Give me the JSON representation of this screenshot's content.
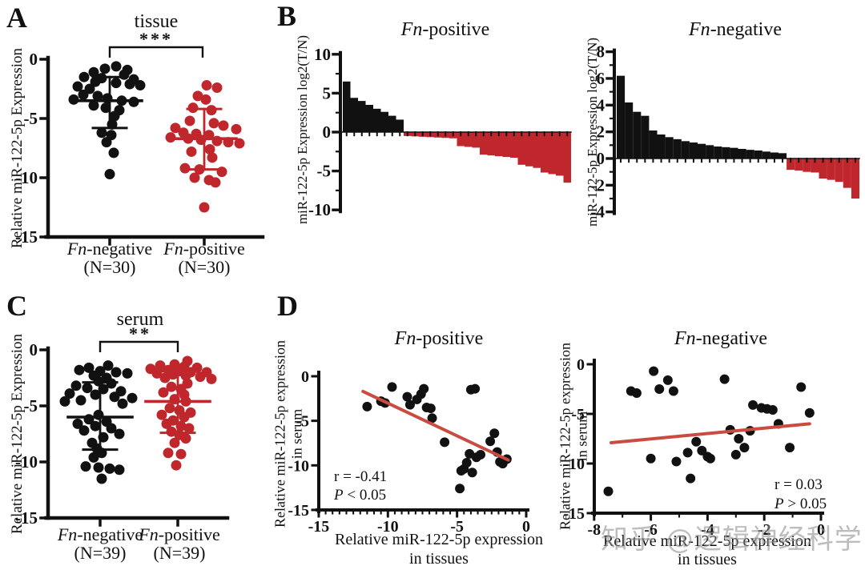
{
  "watermark": {
    "text": "知乎 @逻辑神经科学"
  },
  "colors": {
    "black": "#111111",
    "red": "#C0272D",
    "trendline": "#CC4B40"
  },
  "chart_data": [
    {
      "panel": "A",
      "type": "scatter",
      "title": "tissue",
      "significance": "***",
      "ylabel": "Relative miR-122-5p Expression",
      "ylim": [
        -15,
        0
      ],
      "yticks": [
        0,
        -5,
        -10,
        -15
      ],
      "groups": [
        {
          "name_italic": "Fn",
          "name_rest": "-negative",
          "n": "(N=30)",
          "color": "#111111",
          "mean": -3.5,
          "sd_high": -1.5,
          "sd_low": -5.8,
          "points": [
            [
              -0.6,
              8
            ],
            [
              -0.8,
              -6
            ],
            [
              -0.9,
              22
            ],
            [
              -1.1,
              -20
            ],
            [
              -1.3,
              18
            ],
            [
              -1.5,
              -32
            ],
            [
              -1.6,
              -10
            ],
            [
              -1.7,
              30
            ],
            [
              -1.9,
              -18
            ],
            [
              -2.0,
              8
            ],
            [
              -2.1,
              25
            ],
            [
              -2.2,
              38
            ],
            [
              -2.3,
              -40
            ],
            [
              -2.5,
              -25
            ],
            [
              -3.0,
              -33
            ],
            [
              -3.1,
              -15
            ],
            [
              -3.3,
              -3
            ],
            [
              -3.4,
              -45
            ],
            [
              -3.5,
              15
            ],
            [
              -3.6,
              30
            ],
            [
              -3.9,
              -20
            ],
            [
              -4.1,
              -5
            ],
            [
              -4.3,
              12
            ],
            [
              -4.8,
              6
            ],
            [
              -5.5,
              3
            ],
            [
              -6.2,
              -10
            ],
            [
              -6.4,
              2
            ],
            [
              -7.0,
              -4
            ],
            [
              -7.9,
              5
            ],
            [
              -9.7,
              0
            ]
          ]
        },
        {
          "name_italic": "Fn",
          "name_rest": "-positive",
          "n": "(N=30)",
          "color": "#C0272D",
          "mean": -6.7,
          "sd_high": -4.2,
          "sd_low": -9.3,
          "points": [
            [
              -2.2,
              3
            ],
            [
              -2.4,
              16
            ],
            [
              -3.1,
              -8
            ],
            [
              -3.4,
              2
            ],
            [
              -4.1,
              -14
            ],
            [
              -4.3,
              9
            ],
            [
              -5.2,
              -18
            ],
            [
              -5.4,
              12
            ],
            [
              -5.6,
              24
            ],
            [
              -5.8,
              -36
            ],
            [
              -5.9,
              40
            ],
            [
              -6.2,
              -26
            ],
            [
              -6.3,
              -10
            ],
            [
              -6.4,
              6
            ],
            [
              -6.6,
              -42
            ],
            [
              -6.7,
              -20
            ],
            [
              -6.8,
              -4
            ],
            [
              -6.9,
              16
            ],
            [
              -7.0,
              30
            ],
            [
              -7.1,
              44
            ],
            [
              -7.6,
              7
            ],
            [
              -7.8,
              -16
            ],
            [
              -8.3,
              10
            ],
            [
              -9.2,
              -24
            ],
            [
              -9.3,
              -6
            ],
            [
              -9.5,
              22
            ],
            [
              -10.0,
              -12
            ],
            [
              -10.2,
              6
            ],
            [
              -10.4,
              14
            ],
            [
              -12.5,
              0
            ]
          ]
        }
      ]
    },
    {
      "panel": "B",
      "type": "waterfall-pair",
      "charts": [
        {
          "title_italic": "Fn",
          "title_rest": "-positive",
          "ylabel": "miR-122-5p Expression  log2(T/N)",
          "ylim": [
            -10,
            10
          ],
          "yticks": [
            10,
            5,
            0,
            -5,
            -10
          ],
          "minor_yticks": [
            7.5,
            2.5,
            -2.5,
            -7.5
          ],
          "pos_color": "#111111",
          "neg_color": "#C0272D",
          "values": [
            6.5,
            4.4,
            4.0,
            3.5,
            3.0,
            2.6,
            2.1,
            1.6,
            -0.5,
            -0.55,
            -0.6,
            -0.65,
            -0.7,
            -0.75,
            -0.8,
            -1.8,
            -1.9,
            -2.0,
            -2.9,
            -3.0,
            -3.1,
            -3.2,
            -3.3,
            -4.2,
            -4.4,
            -4.6,
            -5.2,
            -5.4,
            -5.6,
            -6.5
          ]
        },
        {
          "title_italic": "Fn",
          "title_rest": "-negative",
          "ylabel": "miR-122-5p Expression  log2(T/N)",
          "ylim": [
            -4,
            8
          ],
          "yticks": [
            8,
            6,
            4,
            2,
            0,
            -2,
            -4
          ],
          "minor_yticks": [
            7,
            5,
            3,
            1,
            -1,
            -3
          ],
          "pos_color": "#111111",
          "neg_color": "#C0272D",
          "values": [
            6.2,
            4.2,
            3.5,
            3.2,
            2.1,
            1.8,
            1.6,
            1.45,
            1.3,
            1.2,
            1.1,
            1.0,
            0.9,
            0.85,
            0.8,
            0.72,
            0.65,
            0.6,
            0.52,
            0.45,
            0.4,
            -0.85,
            -0.9,
            -1.0,
            -1.05,
            -1.5,
            -1.6,
            -1.75,
            -2.2,
            -3.0
          ]
        }
      ]
    },
    {
      "panel": "C",
      "type": "scatter",
      "title": "serum",
      "significance": "**",
      "ylabel": "Relative miR-122-5p Expression",
      "ylim": [
        -15,
        0
      ],
      "yticks": [
        0,
        -5,
        -10,
        -15
      ],
      "groups": [
        {
          "name_italic": "Fn",
          "name_rest": "-negative",
          "n": "(N=39)",
          "color": "#111111",
          "mean": -6.0,
          "sd_high": -2.9,
          "sd_low": -8.9,
          "points": [
            [
              -1.4,
              10
            ],
            [
              -1.6,
              -14
            ],
            [
              -1.8,
              -26
            ],
            [
              -1.9,
              0
            ],
            [
              -2.0,
              20
            ],
            [
              -2.1,
              34
            ],
            [
              -2.3,
              -8
            ],
            [
              -2.5,
              8
            ],
            [
              -2.8,
              -2
            ],
            [
              -3.0,
              14
            ],
            [
              -3.2,
              -30
            ],
            [
              -3.4,
              -16
            ],
            [
              -3.5,
              4
            ],
            [
              -3.7,
              26
            ],
            [
              -3.9,
              -38
            ],
            [
              -4.0,
              -6
            ],
            [
              -4.2,
              18
            ],
            [
              -4.3,
              40
            ],
            [
              -4.5,
              -24
            ],
            [
              -4.6,
              -44
            ],
            [
              -4.8,
              28
            ],
            [
              -5.8,
              -2
            ],
            [
              -6.2,
              -14
            ],
            [
              -6.4,
              8
            ],
            [
              -6.6,
              -28
            ],
            [
              -6.8,
              -6
            ],
            [
              -7.0,
              14
            ],
            [
              -7.2,
              -20
            ],
            [
              -7.5,
              24
            ],
            [
              -7.8,
              4
            ],
            [
              -8.3,
              -10
            ],
            [
              -8.8,
              -4
            ],
            [
              -9.2,
              2
            ],
            [
              -9.6,
              -8
            ],
            [
              -10.4,
              -18
            ],
            [
              -10.5,
              -2
            ],
            [
              -10.6,
              12
            ],
            [
              -10.7,
              24
            ],
            [
              -11.5,
              2
            ]
          ]
        },
        {
          "name_italic": "Fn",
          "name_rest": "-positive",
          "n": "(N=39)",
          "color": "#C0272D",
          "mean": -4.6,
          "sd_high": -1.9,
          "sd_low": -7.4,
          "points": [
            [
              -1.0,
              12
            ],
            [
              -1.3,
              -4
            ],
            [
              -1.4,
              -22
            ],
            [
              -1.5,
              8
            ],
            [
              -1.6,
              24
            ],
            [
              -1.7,
              -34
            ],
            [
              -1.8,
              -12
            ],
            [
              -1.9,
              2
            ],
            [
              -2.0,
              16
            ],
            [
              -2.0,
              36
            ],
            [
              -2.1,
              -26
            ],
            [
              -2.2,
              -6
            ],
            [
              -2.3,
              10
            ],
            [
              -2.4,
              28
            ],
            [
              -2.5,
              -16
            ],
            [
              -2.6,
              42
            ],
            [
              -3.0,
              12
            ],
            [
              -3.3,
              -8
            ],
            [
              -3.5,
              4
            ],
            [
              -3.8,
              -18
            ],
            [
              -4.0,
              8
            ],
            [
              -4.4,
              -4
            ],
            [
              -4.6,
              10
            ],
            [
              -5.2,
              -10
            ],
            [
              -5.4,
              2
            ],
            [
              -5.6,
              16
            ],
            [
              -5.8,
              -20
            ],
            [
              -6.0,
              8
            ],
            [
              -6.3,
              -6
            ],
            [
              -6.6,
              -14
            ],
            [
              -6.8,
              4
            ],
            [
              -7.0,
              14
            ],
            [
              -7.3,
              -8
            ],
            [
              -7.6,
              2
            ],
            [
              -7.9,
              10
            ],
            [
              -8.3,
              -4
            ],
            [
              -9.2,
              -12
            ],
            [
              -9.3,
              4
            ],
            [
              -10.3,
              -2
            ]
          ]
        }
      ]
    },
    {
      "panel": "D",
      "type": "correlation-pair",
      "charts": [
        {
          "title_italic": "Fn",
          "title_rest": "-positive",
          "ylabel1": "Relative miR-122-5p expression",
          "ylabel2": "in serum",
          "xlabel1": "Relative miR-122-5p expression",
          "xlabel2": "in tissues",
          "xlim": [
            -15,
            0
          ],
          "xticks": [
            -15,
            -10,
            -5,
            0
          ],
          "ylim": [
            -15,
            0
          ],
          "yticks": [
            0,
            -5,
            -10,
            -15
          ],
          "r_label": "r = -0.41",
          "p_italic": "P",
          "p_rest": " < 0.05",
          "point_color": "#111111",
          "trend_color": "#CC4B40",
          "trend": [
            [
              -11.8,
              -1.7
            ],
            [
              -1.3,
              -9.4
            ]
          ],
          "points": [
            [
              -11.5,
              -3.4
            ],
            [
              -10.5,
              -2.8
            ],
            [
              -10.2,
              -3.0
            ],
            [
              -9.7,
              -1.2
            ],
            [
              -8.6,
              -2.3
            ],
            [
              -8.4,
              -3.2
            ],
            [
              -7.9,
              -2.6
            ],
            [
              -7.6,
              -2.0
            ],
            [
              -7.4,
              -1.4
            ],
            [
              -7.2,
              -3.5
            ],
            [
              -6.9,
              -3.6
            ],
            [
              -6.8,
              -4.7
            ],
            [
              -5.9,
              -7.4
            ],
            [
              -4.8,
              -12.6
            ],
            [
              -4.7,
              -10.6
            ],
            [
              -4.5,
              -10.4
            ],
            [
              -4.3,
              -9.7
            ],
            [
              -4.1,
              -8.7
            ],
            [
              -4.0,
              -1.5
            ],
            [
              -3.9,
              -10.8
            ],
            [
              -3.7,
              -1.4
            ],
            [
              -3.6,
              -9.1
            ],
            [
              -3.3,
              -8.8
            ],
            [
              -2.6,
              -7.3
            ],
            [
              -2.3,
              -6.4
            ],
            [
              -2.1,
              -8.5
            ],
            [
              -1.9,
              -9.6
            ],
            [
              -1.7,
              -9.8
            ],
            [
              -1.4,
              -9.3
            ]
          ]
        },
        {
          "title_italic": "Fn",
          "title_rest": "-negative",
          "ylabel1": "Relative miR-122-5p expression",
          "ylabel2": "in serum",
          "xlabel1": "Relative miR-122-5p expression",
          "xlabel2": "in tissues",
          "xlim": [
            -8,
            0
          ],
          "xticks": [
            -8,
            -6,
            -4,
            -2,
            0
          ],
          "ylim": [
            -15,
            0
          ],
          "yticks": [
            0,
            -5,
            -10,
            -15
          ],
          "r_label": "r = 0.03",
          "p_italic": "P",
          "p_rest": " > 0.05",
          "point_color": "#111111",
          "trend_color": "#CC4B40",
          "trend": [
            [
              -7.4,
              -7.9
            ],
            [
              -0.4,
              -6.0
            ]
          ],
          "points": [
            [
              -7.5,
              -12.8
            ],
            [
              -6.7,
              -2.7
            ],
            [
              -6.5,
              -2.9
            ],
            [
              -6.0,
              -9.5
            ],
            [
              -5.9,
              -0.7
            ],
            [
              -5.7,
              -2.5
            ],
            [
              -5.4,
              -1.6
            ],
            [
              -5.2,
              -2.7
            ],
            [
              -5.1,
              -9.8
            ],
            [
              -4.7,
              -8.9
            ],
            [
              -4.6,
              -11.5
            ],
            [
              -4.4,
              -7.8
            ],
            [
              -4.2,
              -8.7
            ],
            [
              -4.0,
              -9.3
            ],
            [
              -3.9,
              -9.5
            ],
            [
              -3.4,
              -1.5
            ],
            [
              -3.2,
              -6.6
            ],
            [
              -3.0,
              -9.1
            ],
            [
              -2.9,
              -7.5
            ],
            [
              -2.7,
              -8.4
            ],
            [
              -2.5,
              -6.7
            ],
            [
              -2.4,
              -4.1
            ],
            [
              -2.1,
              -4.4
            ],
            [
              -1.9,
              -4.5
            ],
            [
              -1.7,
              -4.6
            ],
            [
              -1.5,
              -6.0
            ],
            [
              -1.1,
              -8.4
            ],
            [
              -0.7,
              -2.3
            ],
            [
              -0.4,
              -4.9
            ]
          ]
        }
      ]
    }
  ]
}
